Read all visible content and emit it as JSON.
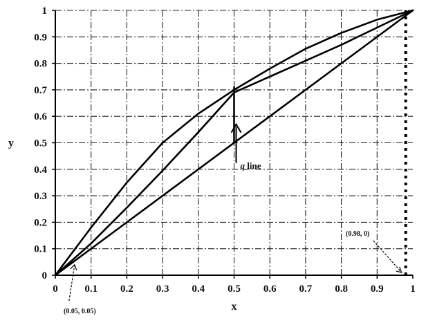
{
  "chart_data": {
    "type": "line",
    "title": "",
    "xlabel": "x",
    "ylabel": "y",
    "xlim": [
      0,
      1
    ],
    "ylim": [
      0,
      1
    ],
    "x_ticks": [
      "0",
      "0.1",
      "0.2",
      "0.3",
      "0.4",
      "0.5",
      "0.6",
      "0.7",
      "0.8",
      "0.9",
      "1"
    ],
    "y_ticks": [
      "0",
      "0.1",
      "0.2",
      "0.3",
      "0.4",
      "0.5",
      "0.6",
      "0.7",
      "0.8",
      "0.9",
      "1"
    ],
    "grid": true,
    "series": [
      {
        "style": "solid",
        "points": [
          [
            0,
            0
          ],
          [
            0.1,
            0.18
          ],
          [
            0.2,
            0.35
          ],
          [
            0.3,
            0.5
          ],
          [
            0.4,
            0.61
          ],
          [
            0.5,
            0.7
          ],
          [
            0.6,
            0.78
          ],
          [
            0.7,
            0.855
          ],
          [
            0.8,
            0.915
          ],
          [
            0.9,
            0.965
          ],
          [
            1,
            1
          ]
        ]
      },
      {
        "style": "solid",
        "points": [
          [
            0,
            0
          ],
          [
            0.1,
            0.12
          ],
          [
            0.2,
            0.255
          ],
          [
            0.3,
            0.395
          ],
          [
            0.4,
            0.54
          ],
          [
            0.5,
            0.69
          ],
          [
            0.6,
            0.75
          ],
          [
            0.7,
            0.81
          ],
          [
            0.8,
            0.87
          ],
          [
            0.9,
            0.935
          ],
          [
            1,
            1
          ]
        ]
      },
      {
        "style": "solid",
        "points": [
          [
            0,
            0
          ],
          [
            1,
            1
          ]
        ]
      },
      {
        "style": "solid",
        "points": [
          [
            0.5,
            0.5
          ],
          [
            0.5,
            0.71
          ]
        ]
      },
      {
        "style": "dotted",
        "points": [
          [
            0.98,
            0
          ],
          [
            0.98,
            1
          ]
        ]
      }
    ],
    "annotations": [
      {
        "id": "q_line",
        "text_italic": "q",
        "text_rest": " line",
        "x": 0.5,
        "y": 0.46
      },
      {
        "id": "point_low",
        "text": "(0.05, 0.05)",
        "x": 0.05,
        "y": 0.05
      },
      {
        "id": "point_high",
        "text": "(0.98, 0)",
        "x": 0.98,
        "y": 0
      }
    ]
  }
}
